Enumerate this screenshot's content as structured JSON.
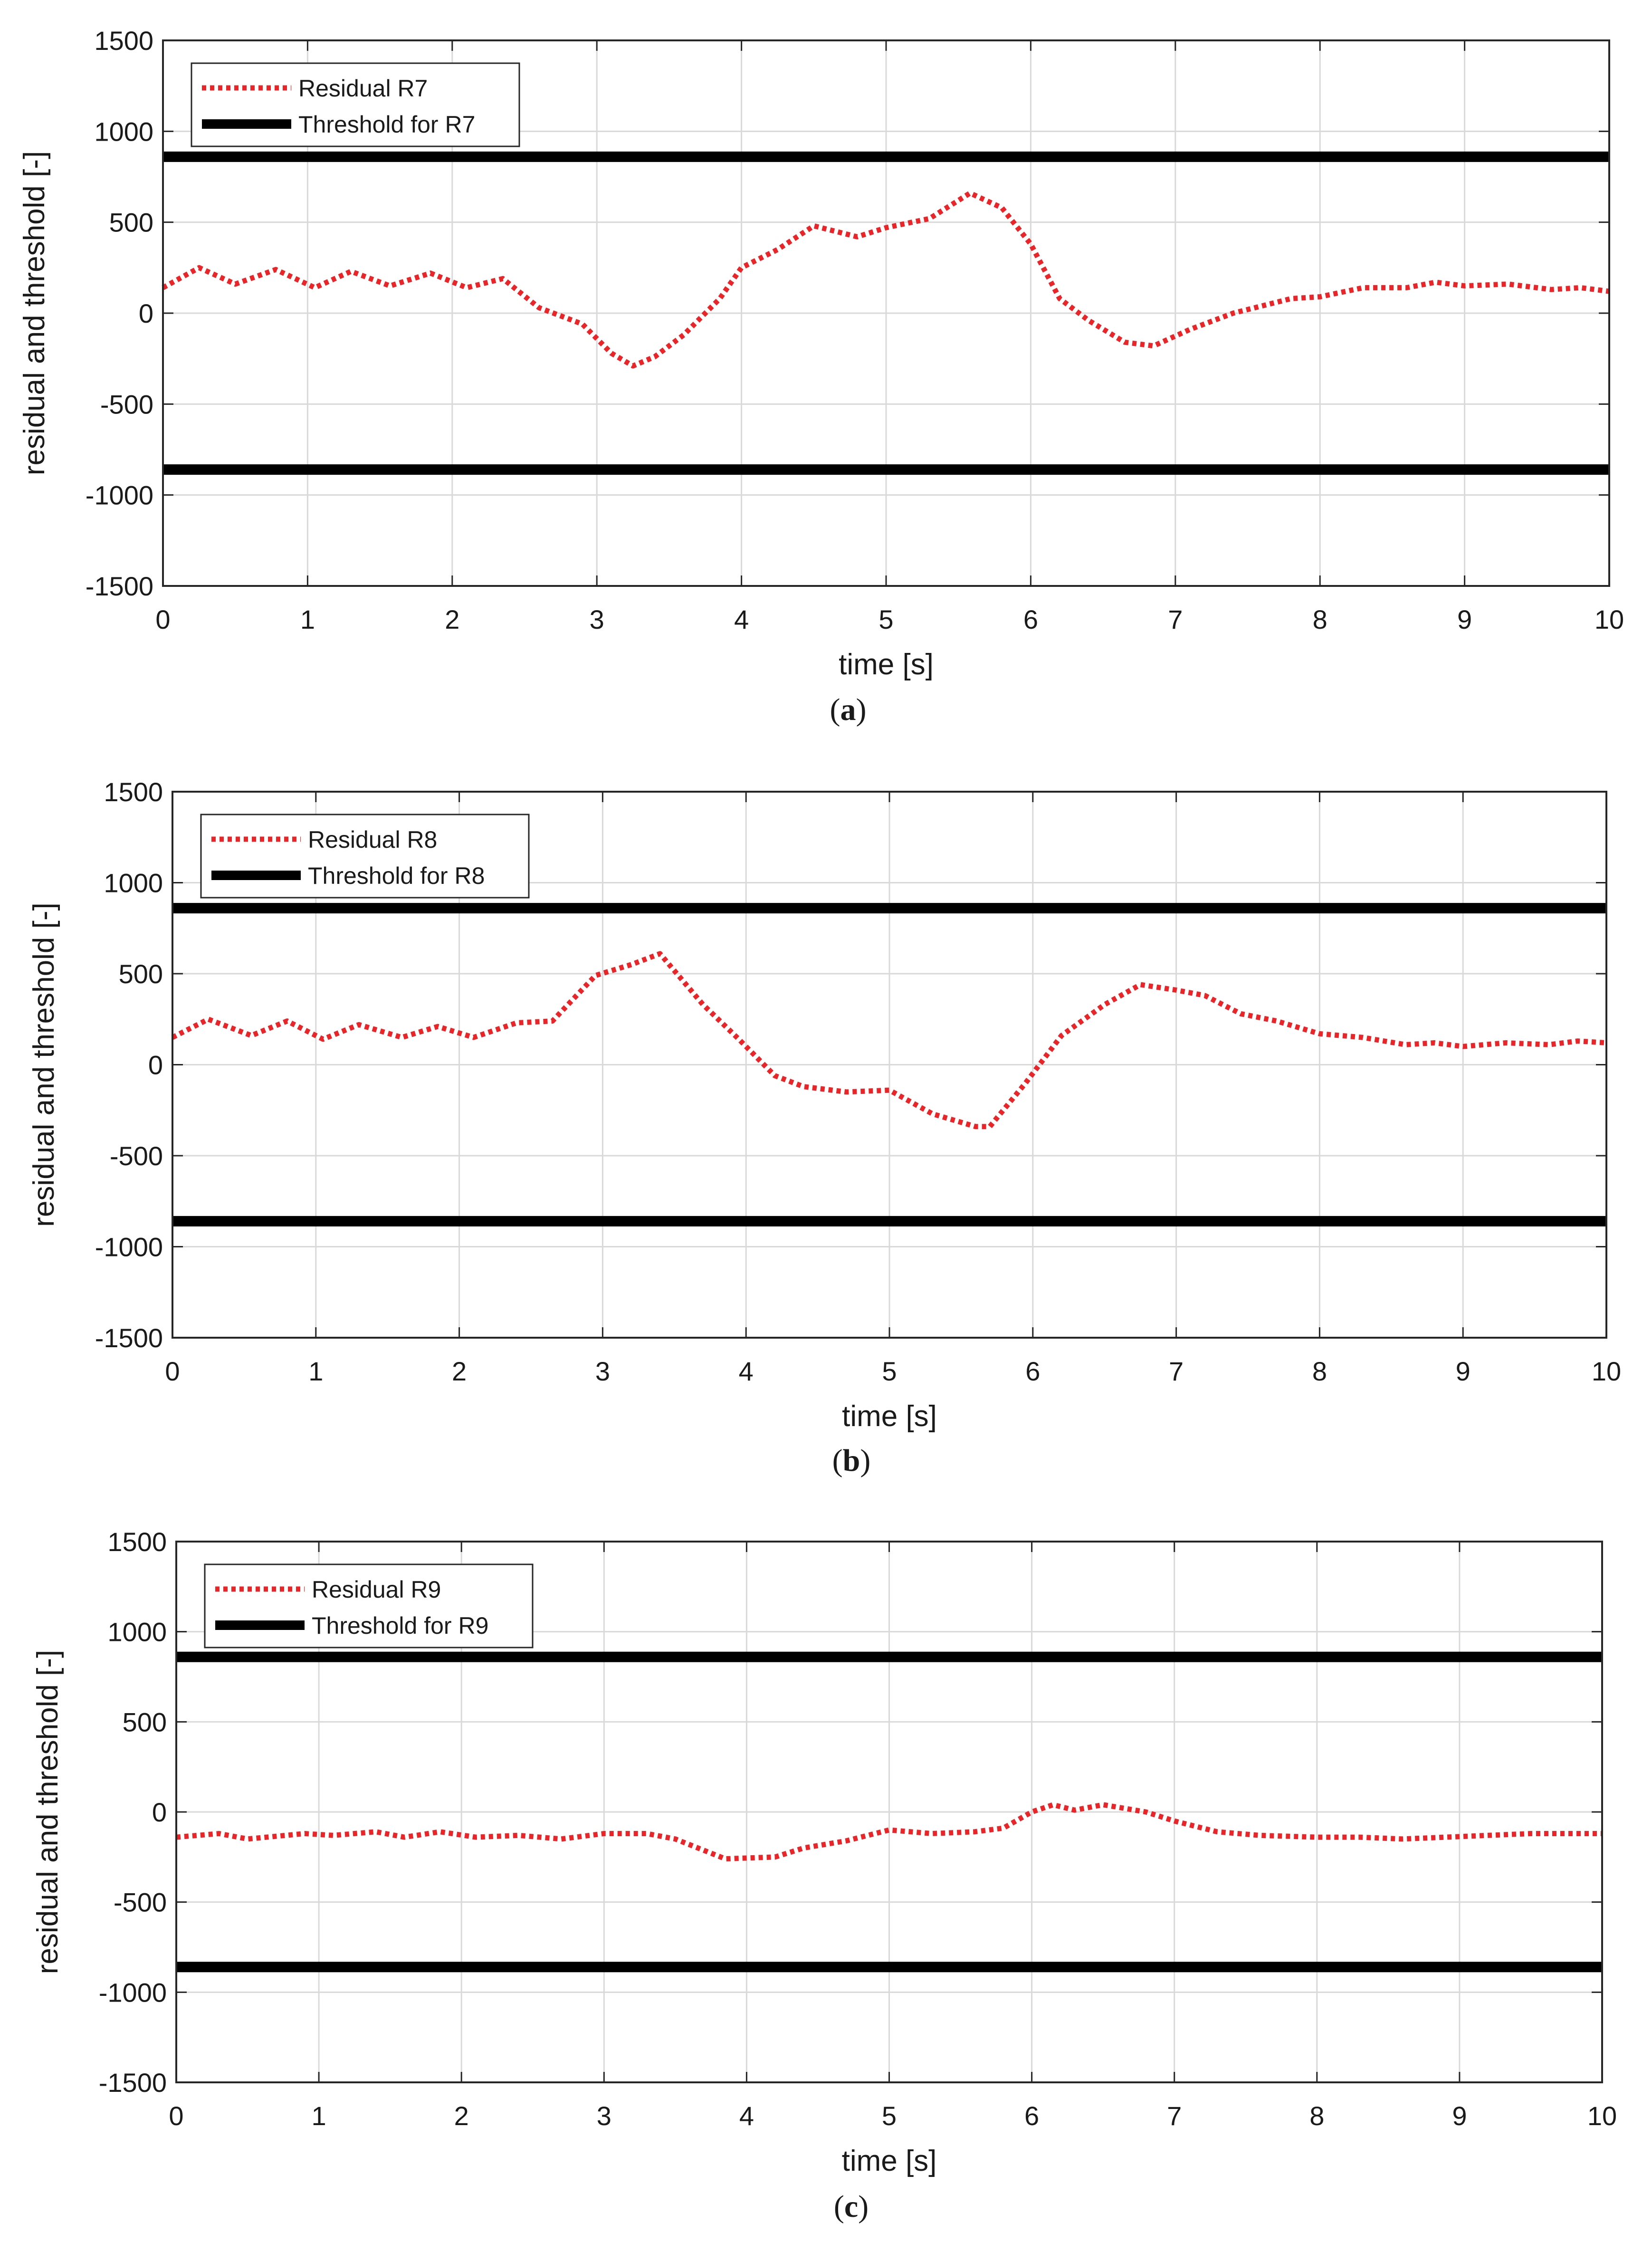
{
  "figure": {
    "chart_data": [
      {
        "type": "line",
        "panel": "a",
        "caption": {
          "open": "(",
          "letter": "a",
          "close": ")"
        },
        "title": "",
        "xlabel": "time [s]",
        "ylabel": "residual and threshold [-]",
        "xlim": [
          0,
          10
        ],
        "ylim": [
          -1500,
          1500
        ],
        "xticks": [
          0,
          1,
          2,
          3,
          4,
          5,
          6,
          7,
          8,
          9,
          10
        ],
        "xtick_labels": [
          "0",
          "1",
          "2",
          "3",
          "4",
          "5",
          "6",
          "7",
          "8",
          "9",
          "10"
        ],
        "yticks": [
          1500,
          1000,
          500,
          0,
          -500,
          -1000,
          -1500
        ],
        "ytick_labels": [
          "1500",
          "1000",
          "500",
          "0",
          "-500",
          "-1000",
          "-1500"
        ],
        "grid": true,
        "legend_position": "top-left",
        "series": [
          {
            "name": "Residual R7",
            "style": "dotted",
            "color": "#e8262a",
            "x": [
              0,
              0.25,
              0.5,
              0.78,
              1.05,
              1.3,
              1.57,
              1.85,
              2.1,
              2.35,
              2.6,
              2.9,
              3.1,
              3.25,
              3.4,
              3.6,
              3.85,
              4.0,
              4.25,
              4.5,
              4.8,
              5.0,
              5.3,
              5.58,
              5.8,
              6.0,
              6.2,
              6.4,
              6.65,
              6.85,
              7.1,
              7.4,
              7.8,
              8.0,
              8.3,
              8.6,
              8.8,
              9.0,
              9.3,
              9.6,
              9.8,
              10.0
            ],
            "y": [
              140,
              250,
              160,
              240,
              140,
              230,
              150,
              220,
              140,
              190,
              30,
              -60,
              -220,
              -290,
              -240,
              -120,
              80,
              250,
              350,
              480,
              420,
              470,
              520,
              660,
              580,
              380,
              80,
              -40,
              -160,
              -180,
              -90,
              0,
              80,
              90,
              140,
              140,
              170,
              150,
              160,
              130,
              140,
              120
            ]
          },
          {
            "name": "Threshold for R7",
            "style": "solid",
            "color": "#000000",
            "x": [
              0,
              10
            ],
            "y": [
              860,
              860
            ]
          },
          {
            "name": "",
            "style": "solid",
            "color": "#000000",
            "x": [
              0,
              10
            ],
            "y": [
              -860,
              -860
            ]
          }
        ]
      },
      {
        "type": "line",
        "panel": "b",
        "caption": {
          "open": "(",
          "letter": "b",
          "close": ")"
        },
        "title": "",
        "xlabel": "time [s]",
        "ylabel": "residual and threshold [-]",
        "xlim": [
          0,
          10
        ],
        "ylim": [
          -1500,
          1500
        ],
        "xticks": [
          0,
          1,
          2,
          3,
          4,
          5,
          6,
          7,
          8,
          9,
          10
        ],
        "xtick_labels": [
          "0",
          "1",
          "2",
          "3",
          "4",
          "5",
          "6",
          "7",
          "8",
          "9",
          "10"
        ],
        "yticks": [
          1500,
          1000,
          500,
          0,
          -500,
          -1000,
          -1500
        ],
        "ytick_labels": [
          "1500",
          "1000",
          "500",
          "0",
          "-500",
          "-1000",
          "-1500"
        ],
        "grid": true,
        "legend_position": "top-left",
        "series": [
          {
            "name": "Residual R8",
            "style": "dotted",
            "color": "#e8262a",
            "x": [
              0,
              0.25,
              0.55,
              0.8,
              1.05,
              1.3,
              1.6,
              1.85,
              2.1,
              2.4,
              2.65,
              2.95,
              3.2,
              3.4,
              3.7,
              3.95,
              4.2,
              4.4,
              4.7,
              5.0,
              5.3,
              5.6,
              5.7,
              5.95,
              6.2,
              6.5,
              6.75,
              7.0,
              7.2,
              7.45,
              7.7,
              8.0,
              8.3,
              8.6,
              8.8,
              9.0,
              9.3,
              9.6,
              9.8,
              10.0
            ],
            "y": [
              150,
              250,
              160,
              240,
              140,
              220,
              150,
              210,
              150,
              230,
              240,
              490,
              550,
              610,
              330,
              140,
              -60,
              -120,
              -150,
              -140,
              -270,
              -340,
              -340,
              -100,
              160,
              330,
              440,
              410,
              380,
              280,
              240,
              170,
              150,
              110,
              120,
              100,
              120,
              110,
              130,
              120
            ]
          },
          {
            "name": "Threshold for R8",
            "style": "solid",
            "color": "#000000",
            "x": [
              0,
              10
            ],
            "y": [
              860,
              860
            ]
          },
          {
            "name": "",
            "style": "solid",
            "color": "#000000",
            "x": [
              0,
              10
            ],
            "y": [
              -860,
              -860
            ]
          }
        ]
      },
      {
        "type": "line",
        "panel": "c",
        "caption": {
          "open": "(",
          "letter": "c",
          "close": ")"
        },
        "title": "",
        "xlabel": "time [s]",
        "ylabel": "residual and threshold [-]",
        "xlim": [
          0,
          10
        ],
        "ylim": [
          -1500,
          1500
        ],
        "xticks": [
          0,
          1,
          2,
          3,
          4,
          5,
          6,
          7,
          8,
          9,
          10
        ],
        "xtick_labels": [
          "0",
          "1",
          "2",
          "3",
          "4",
          "5",
          "6",
          "7",
          "8",
          "9",
          "10"
        ],
        "yticks": [
          1500,
          1000,
          500,
          0,
          -500,
          -1000,
          -1500
        ],
        "ytick_labels": [
          "1500",
          "1000",
          "500",
          "0",
          "-500",
          "-1000",
          "-1500"
        ],
        "grid": true,
        "legend_position": "top-left",
        "series": [
          {
            "name": "Residual R9",
            "style": "dotted",
            "color": "#e8262a",
            "x": [
              0,
              0.3,
              0.5,
              0.9,
              1.1,
              1.4,
              1.6,
              1.85,
              2.1,
              2.4,
              2.7,
              3.0,
              3.3,
              3.5,
              3.85,
              4.2,
              4.4,
              4.7,
              5.0,
              5.3,
              5.6,
              5.8,
              6.0,
              6.15,
              6.3,
              6.5,
              6.8,
              7.0,
              7.3,
              7.6,
              8.0,
              8.3,
              8.6,
              8.9,
              9.2,
              9.5,
              9.8,
              10.0
            ],
            "y": [
              -140,
              -120,
              -150,
              -120,
              -130,
              -110,
              -140,
              -110,
              -140,
              -130,
              -150,
              -120,
              -120,
              -150,
              -260,
              -250,
              -200,
              -160,
              -100,
              -120,
              -110,
              -90,
              0,
              40,
              10,
              40,
              0,
              -50,
              -110,
              -130,
              -140,
              -140,
              -150,
              -140,
              -130,
              -120,
              -120,
              -120
            ]
          },
          {
            "name": "Threshold for R9",
            "style": "solid",
            "color": "#000000",
            "x": [
              0,
              10
            ],
            "y": [
              860,
              860
            ]
          },
          {
            "name": "",
            "style": "solid",
            "color": "#000000",
            "x": [
              0,
              10
            ],
            "y": [
              -860,
              -860
            ]
          }
        ]
      }
    ]
  }
}
